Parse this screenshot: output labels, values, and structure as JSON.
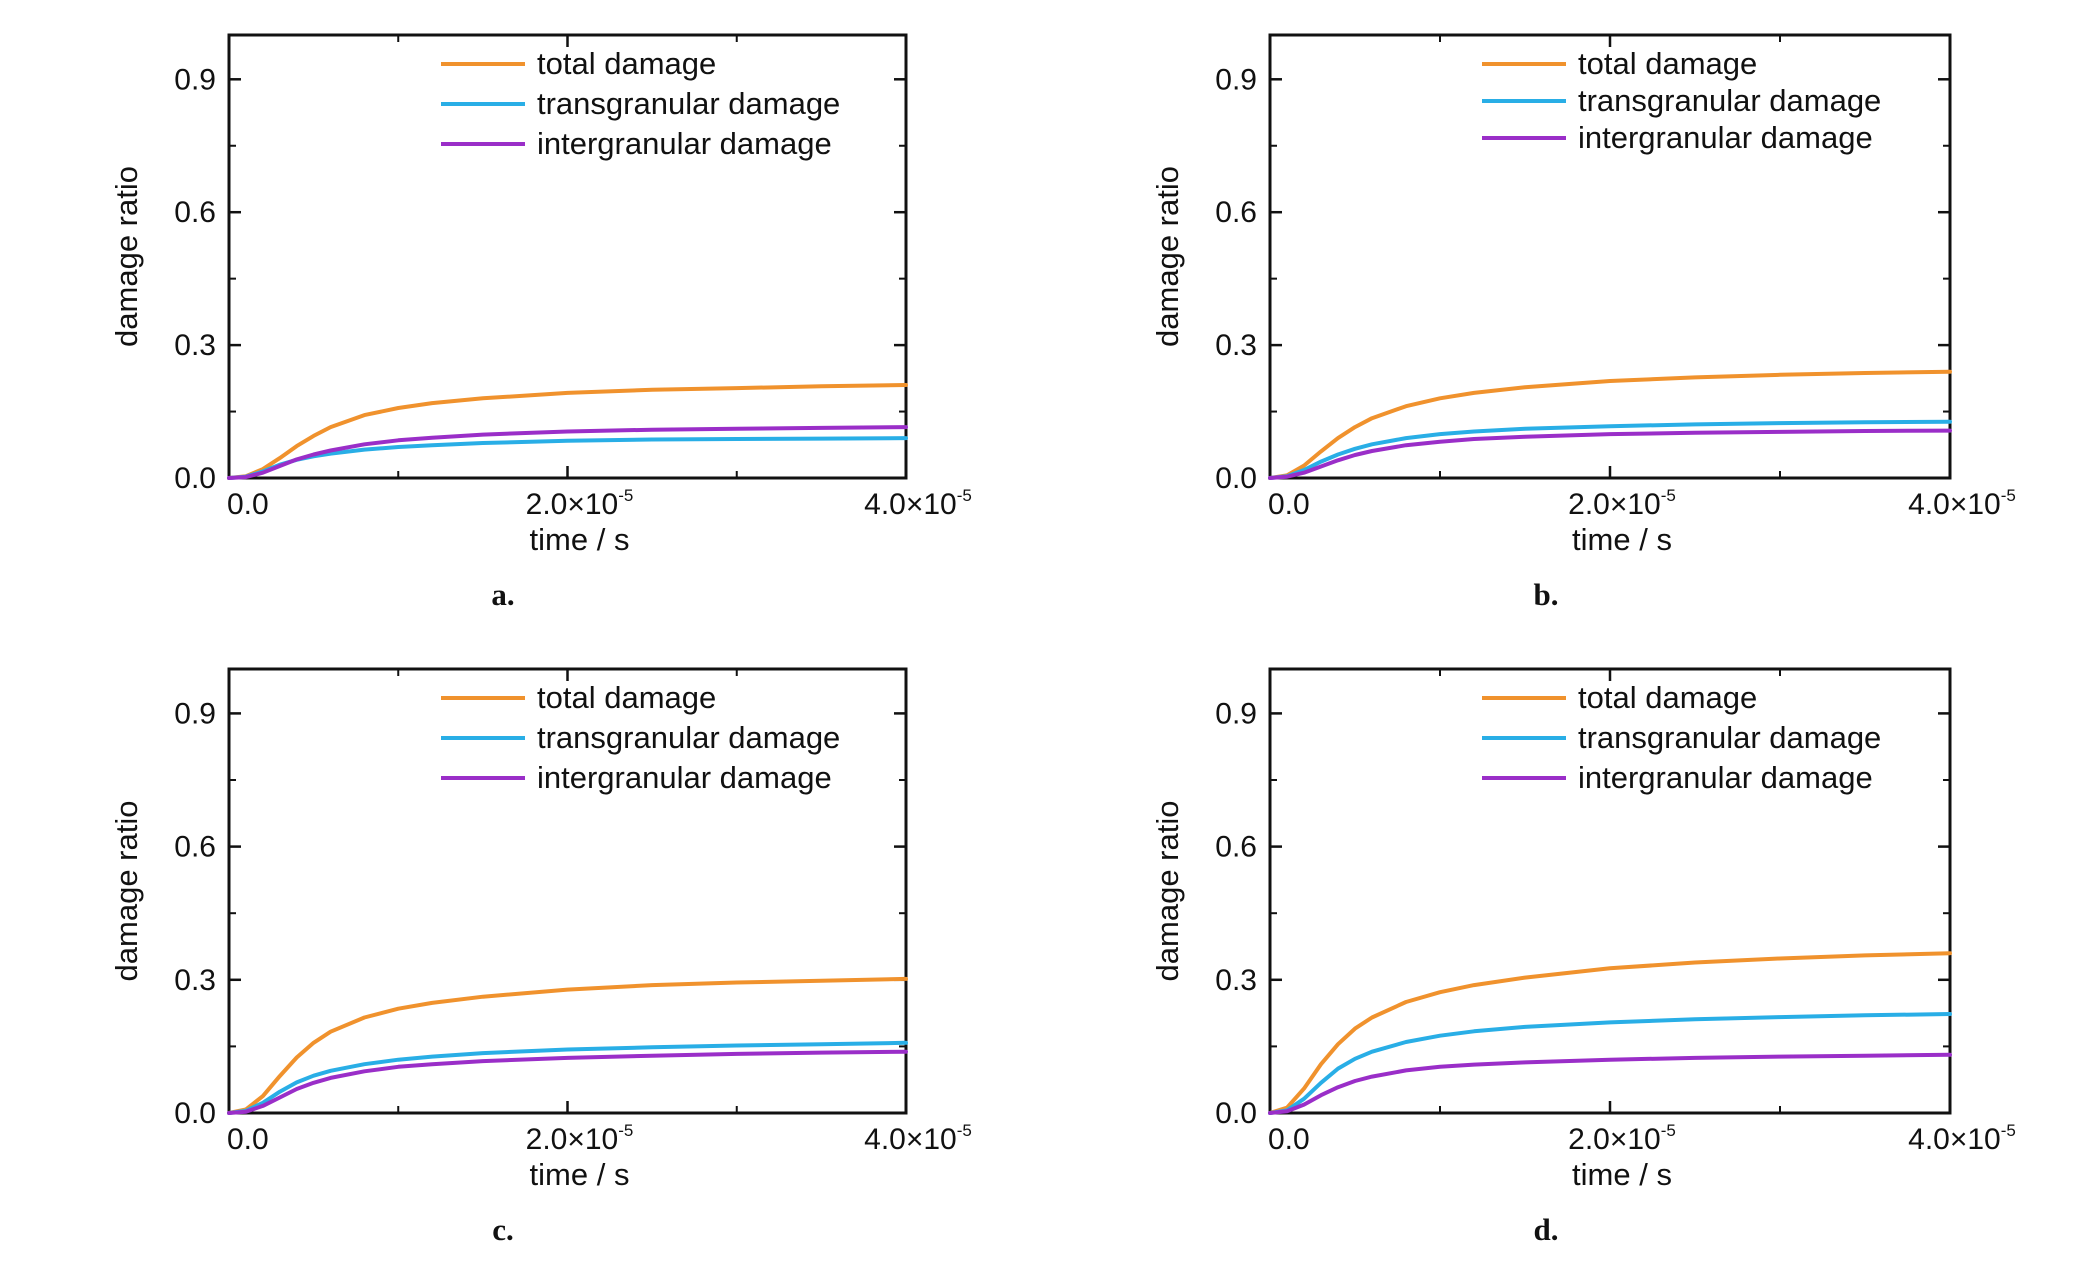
{
  "figure": {
    "panels": [
      "a.",
      "b.",
      "c.",
      "d."
    ]
  },
  "colors": {
    "total": "#F0922D",
    "transgranular": "#29AEE6",
    "intergranular": "#9A2EC8",
    "axis": "#111111"
  },
  "chart_data": [
    {
      "type": "line",
      "panel_label": "a.",
      "xlabel": "time / s",
      "ylabel": "damage ratio",
      "xlim": [
        0,
        4e-05
      ],
      "ylim": [
        0,
        1.0
      ],
      "x_ticks": [
        {
          "mantissa": "0.0",
          "exp": ""
        },
        {
          "mantissa": "2.0×10",
          "exp": "-5"
        },
        {
          "mantissa": "4.0×10",
          "exp": "-5"
        }
      ],
      "y_ticks": [
        "0.0",
        "0.3",
        "0.6",
        "0.9"
      ],
      "legend_position": "top-center",
      "x": [
        0,
        1e-06,
        2e-06,
        3e-06,
        4e-06,
        5e-06,
        6e-06,
        8e-06,
        1e-05,
        1.2e-05,
        1.5e-05,
        2e-05,
        2.5e-05,
        3e-05,
        3.5e-05,
        4e-05
      ],
      "series": [
        {
          "name": "total damage",
          "color_key": "total",
          "values": [
            0,
            0.004,
            0.02,
            0.045,
            0.072,
            0.095,
            0.115,
            0.142,
            0.158,
            0.169,
            0.18,
            0.192,
            0.199,
            0.203,
            0.207,
            0.21
          ]
        },
        {
          "name": "transgranular damage",
          "color_key": "transgranular",
          "values": [
            0,
            0.003,
            0.015,
            0.03,
            0.041,
            0.049,
            0.055,
            0.064,
            0.07,
            0.074,
            0.079,
            0.084,
            0.087,
            0.088,
            0.089,
            0.09
          ]
        },
        {
          "name": "intergranular damage",
          "color_key": "intergranular",
          "values": [
            0,
            0.002,
            0.012,
            0.027,
            0.042,
            0.053,
            0.062,
            0.076,
            0.085,
            0.091,
            0.098,
            0.105,
            0.109,
            0.111,
            0.113,
            0.115
          ]
        }
      ]
    },
    {
      "type": "line",
      "panel_label": "b.",
      "xlabel": "time / s",
      "ylabel": "damage ratio",
      "xlim": [
        0,
        4e-05
      ],
      "ylim": [
        0,
        1.0
      ],
      "x_ticks": [
        {
          "mantissa": "0.0",
          "exp": ""
        },
        {
          "mantissa": "2.0×10",
          "exp": "-5"
        },
        {
          "mantissa": "4.0×10",
          "exp": "-5"
        }
      ],
      "y_ticks": [
        "0.0",
        "0.3",
        "0.6",
        "0.9"
      ],
      "legend_position": "top-center",
      "x": [
        0,
        1e-06,
        2e-06,
        3e-06,
        4e-06,
        5e-06,
        6e-06,
        8e-06,
        1e-05,
        1.2e-05,
        1.5e-05,
        2e-05,
        2.5e-05,
        3e-05,
        3.5e-05,
        4e-05
      ],
      "series": [
        {
          "name": "total damage",
          "color_key": "total",
          "values": [
            0,
            0.006,
            0.028,
            0.06,
            0.09,
            0.115,
            0.135,
            0.162,
            0.18,
            0.192,
            0.205,
            0.219,
            0.227,
            0.233,
            0.237,
            0.24
          ]
        },
        {
          "name": "transgranular damage",
          "color_key": "transgranular",
          "values": [
            0,
            0.004,
            0.018,
            0.037,
            0.053,
            0.066,
            0.076,
            0.09,
            0.099,
            0.105,
            0.111,
            0.117,
            0.121,
            0.124,
            0.126,
            0.127
          ]
        },
        {
          "name": "intergranular damage",
          "color_key": "intergranular",
          "values": [
            0,
            0.003,
            0.012,
            0.026,
            0.04,
            0.052,
            0.061,
            0.074,
            0.082,
            0.088,
            0.093,
            0.099,
            0.102,
            0.104,
            0.106,
            0.107
          ]
        }
      ]
    },
    {
      "type": "line",
      "panel_label": "c.",
      "xlabel": "time / s",
      "ylabel": "damage ratio",
      "xlim": [
        0,
        4e-05
      ],
      "ylim": [
        0,
        1.0
      ],
      "x_ticks": [
        {
          "mantissa": "0.0",
          "exp": ""
        },
        {
          "mantissa": "2.0×10",
          "exp": "-5"
        },
        {
          "mantissa": "4.0×10",
          "exp": "-5"
        }
      ],
      "y_ticks": [
        "0.0",
        "0.3",
        "0.6",
        "0.9"
      ],
      "legend_position": "top-center",
      "x": [
        0,
        1e-06,
        2e-06,
        3e-06,
        4e-06,
        5e-06,
        6e-06,
        8e-06,
        1e-05,
        1.2e-05,
        1.5e-05,
        2e-05,
        2.5e-05,
        3e-05,
        3.5e-05,
        4e-05
      ],
      "series": [
        {
          "name": "total damage",
          "color_key": "total",
          "values": [
            0,
            0.008,
            0.038,
            0.083,
            0.125,
            0.158,
            0.183,
            0.215,
            0.235,
            0.248,
            0.262,
            0.278,
            0.288,
            0.294,
            0.298,
            0.302
          ]
        },
        {
          "name": "transgranular damage",
          "color_key": "transgranular",
          "values": [
            0,
            0.005,
            0.023,
            0.048,
            0.069,
            0.084,
            0.095,
            0.11,
            0.12,
            0.127,
            0.135,
            0.143,
            0.148,
            0.152,
            0.155,
            0.158
          ]
        },
        {
          "name": "intergranular damage",
          "color_key": "intergranular",
          "values": [
            0,
            0.003,
            0.016,
            0.035,
            0.054,
            0.068,
            0.079,
            0.094,
            0.104,
            0.11,
            0.117,
            0.124,
            0.129,
            0.133,
            0.136,
            0.138
          ]
        }
      ]
    },
    {
      "type": "line",
      "panel_label": "d.",
      "xlabel": "time / s",
      "ylabel": "damage ratio",
      "xlim": [
        0,
        4e-05
      ],
      "ylim": [
        0,
        1.0
      ],
      "x_ticks": [
        {
          "mantissa": "0.0",
          "exp": ""
        },
        {
          "mantissa": "2.0×10",
          "exp": "-5"
        },
        {
          "mantissa": "4.0×10",
          "exp": "-5"
        }
      ],
      "y_ticks": [
        "0.0",
        "0.3",
        "0.6",
        "0.9"
      ],
      "legend_position": "top-center",
      "x": [
        0,
        1e-06,
        2e-06,
        3e-06,
        4e-06,
        5e-06,
        6e-06,
        8e-06,
        1e-05,
        1.2e-05,
        1.5e-05,
        2e-05,
        2.5e-05,
        3e-05,
        3.5e-05,
        4e-05
      ],
      "series": [
        {
          "name": "total damage",
          "color_key": "total",
          "values": [
            0,
            0.012,
            0.055,
            0.11,
            0.155,
            0.19,
            0.215,
            0.25,
            0.272,
            0.288,
            0.305,
            0.326,
            0.339,
            0.348,
            0.355,
            0.36
          ]
        },
        {
          "name": "transgranular damage",
          "color_key": "transgranular",
          "values": [
            0,
            0.006,
            0.032,
            0.068,
            0.1,
            0.122,
            0.138,
            0.16,
            0.174,
            0.184,
            0.194,
            0.204,
            0.211,
            0.216,
            0.22,
            0.223
          ]
        },
        {
          "name": "intergranular damage",
          "color_key": "intergranular",
          "values": [
            0,
            0.004,
            0.019,
            0.04,
            0.058,
            0.072,
            0.082,
            0.096,
            0.104,
            0.109,
            0.114,
            0.12,
            0.124,
            0.127,
            0.129,
            0.131
          ]
        }
      ]
    }
  ]
}
